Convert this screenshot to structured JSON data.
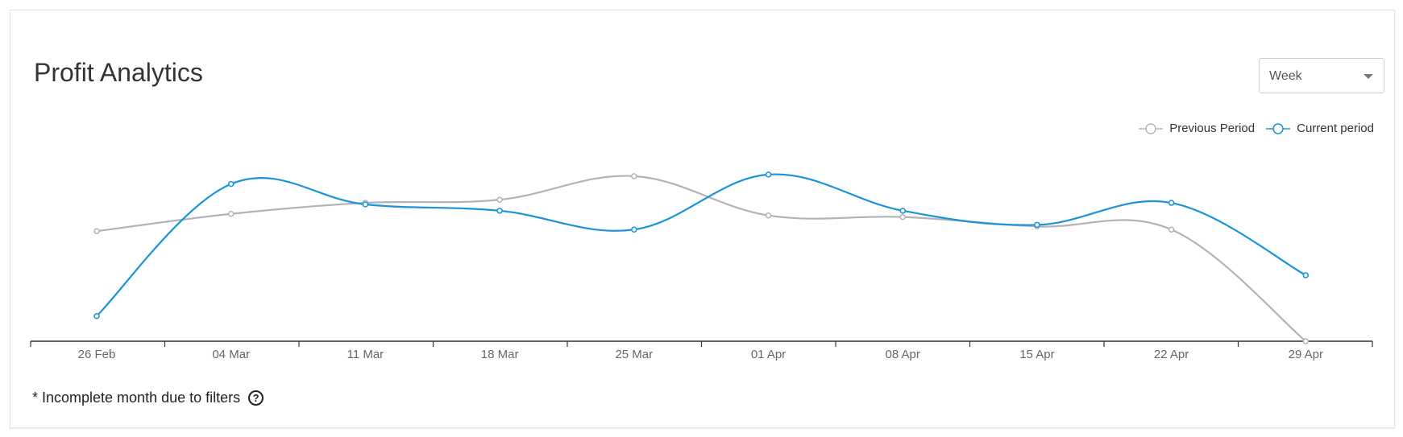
{
  "header": {
    "title": "Profit Analytics",
    "period_select": {
      "value": "Week"
    }
  },
  "footnote": {
    "text": "* Incomplete month due to filters",
    "help_icon": "question-circle-icon"
  },
  "colors": {
    "previous": "#b0b4ba",
    "current": "#1a93d9",
    "axis": "#333333"
  },
  "chart_data": {
    "type": "line",
    "categories": [
      "26 Feb",
      "04 Mar",
      "11 Mar",
      "18 Mar",
      "25 Mar",
      "01 Apr",
      "08 Apr",
      "15 Apr",
      "22 Apr",
      "29 Apr"
    ],
    "series": [
      {
        "name": "Previous Period",
        "values": [
          0.7,
          0.81,
          0.88,
          0.9,
          1.05,
          0.8,
          0.79,
          0.73,
          0.71,
          0.0
        ]
      },
      {
        "name": "Current period",
        "values": [
          0.16,
          1.0,
          0.87,
          0.83,
          0.71,
          1.06,
          0.83,
          0.74,
          0.88,
          0.42
        ]
      }
    ],
    "ylim": [
      0,
      1.3
    ],
    "legend_position": "top-right",
    "grid": false
  }
}
